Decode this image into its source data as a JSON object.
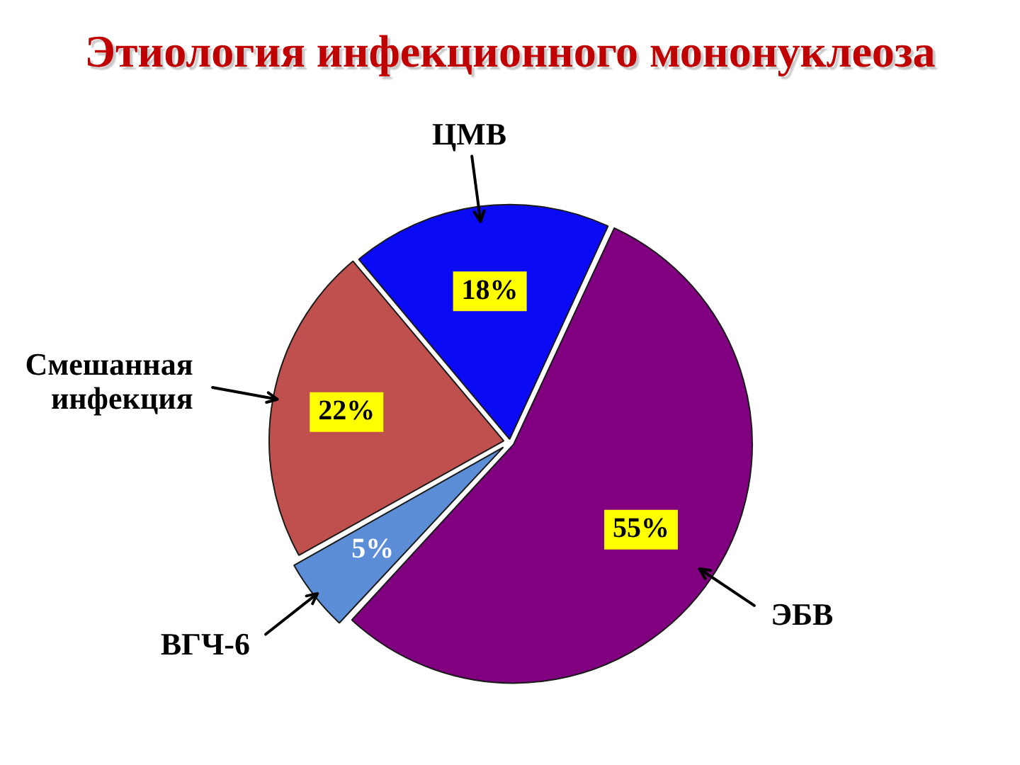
{
  "chart_data": {
    "type": "pie",
    "title": "Этиология инфекционного мононуклеоза",
    "categories": [
      "ЦМВ",
      "ЭБВ",
      "ВГЧ-6",
      "Смешанная инфекция"
    ],
    "values": [
      18,
      55,
      5,
      22
    ],
    "colors": [
      "#0a0af5",
      "#800080",
      "#5b8ed6",
      "#c0504d"
    ],
    "value_labels": [
      "18%",
      "55%",
      "5%",
      "22%"
    ],
    "legend": false
  }
}
